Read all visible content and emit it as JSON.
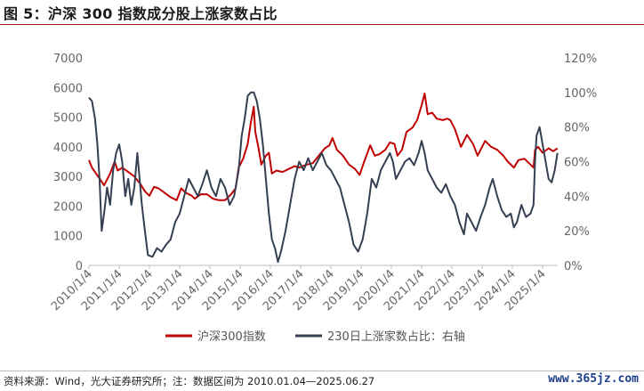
{
  "title": "图 5：沪深 300 指数成分股上涨家数占比",
  "source": "资料来源：Wind，光大证券研究所；注：数据区间为 2010.01.04—2025.06.27",
  "watermark": "www.365jz.com",
  "chart_data": {
    "type": "line",
    "x_ticks": [
      "2010/1/4",
      "2011/1/4",
      "2012/1/4",
      "2013/1/4",
      "2014/1/4",
      "2015/1/4",
      "2016/1/4",
      "2017/1/4",
      "2018/1/4",
      "2019/1/4",
      "2020/1/4",
      "2021/1/4",
      "2022/1/4",
      "2023/1/4",
      "2024/1/4",
      "2025/1/4"
    ],
    "x_range": [
      2010.0,
      2025.5
    ],
    "y_left": {
      "ticks": [
        "0",
        "1000",
        "2000",
        "3000",
        "4000",
        "5000",
        "6000",
        "7000"
      ],
      "range": [
        0,
        7000
      ]
    },
    "y_right": {
      "ticks": [
        "0%",
        "20%",
        "40%",
        "60%",
        "80%",
        "100%",
        "120%"
      ],
      "range": [
        0,
        1.2
      ]
    },
    "grid": false,
    "legend_position": "bottom",
    "series": [
      {
        "name": "沪深300指数",
        "axis": "left",
        "color": "#c00000",
        "points": [
          [
            2010.0,
            3550
          ],
          [
            2010.1,
            3300
          ],
          [
            2010.3,
            3000
          ],
          [
            2010.5,
            2700
          ],
          [
            2010.7,
            3100
          ],
          [
            2010.85,
            3500
          ],
          [
            2010.95,
            3200
          ],
          [
            2011.1,
            3300
          ],
          [
            2011.3,
            3150
          ],
          [
            2011.5,
            3000
          ],
          [
            2011.7,
            2750
          ],
          [
            2011.85,
            2500
          ],
          [
            2012.0,
            2350
          ],
          [
            2012.15,
            2650
          ],
          [
            2012.3,
            2600
          ],
          [
            2012.5,
            2450
          ],
          [
            2012.7,
            2300
          ],
          [
            2012.9,
            2200
          ],
          [
            2013.05,
            2600
          ],
          [
            2013.2,
            2450
          ],
          [
            2013.4,
            2350
          ],
          [
            2013.5,
            2250
          ],
          [
            2013.7,
            2400
          ],
          [
            2013.9,
            2400
          ],
          [
            2014.1,
            2250
          ],
          [
            2014.3,
            2200
          ],
          [
            2014.5,
            2200
          ],
          [
            2014.7,
            2400
          ],
          [
            2014.85,
            2600
          ],
          [
            2014.95,
            3300
          ],
          [
            2015.1,
            3600
          ],
          [
            2015.25,
            4100
          ],
          [
            2015.35,
            4800
          ],
          [
            2015.45,
            5350
          ],
          [
            2015.5,
            4500
          ],
          [
            2015.6,
            4000
          ],
          [
            2015.7,
            3400
          ],
          [
            2015.85,
            3700
          ],
          [
            2015.95,
            3800
          ],
          [
            2016.05,
            3100
          ],
          [
            2016.2,
            3200
          ],
          [
            2016.4,
            3150
          ],
          [
            2016.6,
            3250
          ],
          [
            2016.8,
            3350
          ],
          [
            2016.95,
            3300
          ],
          [
            2017.2,
            3400
          ],
          [
            2017.4,
            3450
          ],
          [
            2017.6,
            3700
          ],
          [
            2017.8,
            3950
          ],
          [
            2017.95,
            4050
          ],
          [
            2018.05,
            4300
          ],
          [
            2018.2,
            3900
          ],
          [
            2018.4,
            3700
          ],
          [
            2018.6,
            3400
          ],
          [
            2018.8,
            3250
          ],
          [
            2018.95,
            3050
          ],
          [
            2019.1,
            3500
          ],
          [
            2019.3,
            4050
          ],
          [
            2019.45,
            3700
          ],
          [
            2019.6,
            3750
          ],
          [
            2019.8,
            3900
          ],
          [
            2019.95,
            4150
          ],
          [
            2020.1,
            4100
          ],
          [
            2020.2,
            3700
          ],
          [
            2020.35,
            3900
          ],
          [
            2020.5,
            4500
          ],
          [
            2020.7,
            4650
          ],
          [
            2020.85,
            4900
          ],
          [
            2021.0,
            5400
          ],
          [
            2021.1,
            5800
          ],
          [
            2021.2,
            5100
          ],
          [
            2021.35,
            5150
          ],
          [
            2021.5,
            4950
          ],
          [
            2021.7,
            4900
          ],
          [
            2021.85,
            4950
          ],
          [
            2021.95,
            4900
          ],
          [
            2022.1,
            4600
          ],
          [
            2022.3,
            4000
          ],
          [
            2022.5,
            4400
          ],
          [
            2022.7,
            4100
          ],
          [
            2022.85,
            3700
          ],
          [
            2022.95,
            3900
          ],
          [
            2023.1,
            4200
          ],
          [
            2023.3,
            4000
          ],
          [
            2023.5,
            3900
          ],
          [
            2023.7,
            3700
          ],
          [
            2023.85,
            3500
          ],
          [
            2024.05,
            3300
          ],
          [
            2024.2,
            3550
          ],
          [
            2024.4,
            3600
          ],
          [
            2024.6,
            3400
          ],
          [
            2024.7,
            3300
          ],
          [
            2024.75,
            3900
          ],
          [
            2024.85,
            4000
          ],
          [
            2025.0,
            3800
          ],
          [
            2025.2,
            3950
          ],
          [
            2025.35,
            3850
          ],
          [
            2025.49,
            3950
          ]
        ]
      },
      {
        "name": "230日上涨家数占比：右轴",
        "axis": "right",
        "color": "#343f52",
        "points": [
          [
            2010.0,
            0.97
          ],
          [
            2010.1,
            0.95
          ],
          [
            2010.2,
            0.85
          ],
          [
            2010.28,
            0.7
          ],
          [
            2010.35,
            0.5
          ],
          [
            2010.42,
            0.2
          ],
          [
            2010.5,
            0.3
          ],
          [
            2010.6,
            0.45
          ],
          [
            2010.7,
            0.35
          ],
          [
            2010.8,
            0.55
          ],
          [
            2010.9,
            0.65
          ],
          [
            2011.0,
            0.7
          ],
          [
            2011.1,
            0.6
          ],
          [
            2011.2,
            0.4
          ],
          [
            2011.3,
            0.5
          ],
          [
            2011.4,
            0.35
          ],
          [
            2011.5,
            0.45
          ],
          [
            2011.6,
            0.65
          ],
          [
            2011.65,
            0.55
          ],
          [
            2011.75,
            0.35
          ],
          [
            2011.85,
            0.2
          ],
          [
            2011.95,
            0.06
          ],
          [
            2012.1,
            0.05
          ],
          [
            2012.25,
            0.1
          ],
          [
            2012.4,
            0.08
          ],
          [
            2012.55,
            0.12
          ],
          [
            2012.7,
            0.15
          ],
          [
            2012.85,
            0.25
          ],
          [
            2013.0,
            0.3
          ],
          [
            2013.15,
            0.4
          ],
          [
            2013.3,
            0.5
          ],
          [
            2013.45,
            0.45
          ],
          [
            2013.6,
            0.4
          ],
          [
            2013.75,
            0.47
          ],
          [
            2013.9,
            0.55
          ],
          [
            2014.05,
            0.45
          ],
          [
            2014.2,
            0.4
          ],
          [
            2014.35,
            0.5
          ],
          [
            2014.5,
            0.45
          ],
          [
            2014.65,
            0.35
          ],
          [
            2014.8,
            0.4
          ],
          [
            2014.95,
            0.55
          ],
          [
            2015.05,
            0.75
          ],
          [
            2015.15,
            0.85
          ],
          [
            2015.25,
            0.98
          ],
          [
            2015.35,
            1.0
          ],
          [
            2015.45,
            1.0
          ],
          [
            2015.55,
            0.95
          ],
          [
            2015.65,
            0.85
          ],
          [
            2015.75,
            0.7
          ],
          [
            2015.85,
            0.5
          ],
          [
            2015.95,
            0.3
          ],
          [
            2016.05,
            0.15
          ],
          [
            2016.15,
            0.1
          ],
          [
            2016.25,
            0.02
          ],
          [
            2016.35,
            0.08
          ],
          [
            2016.5,
            0.2
          ],
          [
            2016.65,
            0.35
          ],
          [
            2016.8,
            0.5
          ],
          [
            2016.95,
            0.6
          ],
          [
            2017.1,
            0.55
          ],
          [
            2017.25,
            0.62
          ],
          [
            2017.4,
            0.55
          ],
          [
            2017.55,
            0.6
          ],
          [
            2017.7,
            0.65
          ],
          [
            2017.85,
            0.58
          ],
          [
            2018.0,
            0.55
          ],
          [
            2018.15,
            0.5
          ],
          [
            2018.3,
            0.45
          ],
          [
            2018.45,
            0.35
          ],
          [
            2018.6,
            0.25
          ],
          [
            2018.75,
            0.12
          ],
          [
            2018.9,
            0.08
          ],
          [
            2019.05,
            0.15
          ],
          [
            2019.2,
            0.3
          ],
          [
            2019.35,
            0.5
          ],
          [
            2019.5,
            0.45
          ],
          [
            2019.65,
            0.55
          ],
          [
            2019.8,
            0.6
          ],
          [
            2019.95,
            0.65
          ],
          [
            2020.05,
            0.6
          ],
          [
            2020.15,
            0.5
          ],
          [
            2020.3,
            0.55
          ],
          [
            2020.45,
            0.6
          ],
          [
            2020.6,
            0.62
          ],
          [
            2020.75,
            0.58
          ],
          [
            2020.9,
            0.65
          ],
          [
            2021.0,
            0.72
          ],
          [
            2021.1,
            0.65
          ],
          [
            2021.2,
            0.55
          ],
          [
            2021.35,
            0.5
          ],
          [
            2021.5,
            0.45
          ],
          [
            2021.65,
            0.42
          ],
          [
            2021.8,
            0.47
          ],
          [
            2021.95,
            0.4
          ],
          [
            2022.1,
            0.35
          ],
          [
            2022.25,
            0.25
          ],
          [
            2022.4,
            0.18
          ],
          [
            2022.5,
            0.3
          ],
          [
            2022.65,
            0.25
          ],
          [
            2022.8,
            0.2
          ],
          [
            2022.95,
            0.28
          ],
          [
            2023.1,
            0.35
          ],
          [
            2023.25,
            0.45
          ],
          [
            2023.35,
            0.5
          ],
          [
            2023.5,
            0.4
          ],
          [
            2023.65,
            0.32
          ],
          [
            2023.8,
            0.28
          ],
          [
            2023.95,
            0.3
          ],
          [
            2024.05,
            0.22
          ],
          [
            2024.15,
            0.25
          ],
          [
            2024.3,
            0.35
          ],
          [
            2024.45,
            0.28
          ],
          [
            2024.6,
            0.3
          ],
          [
            2024.7,
            0.35
          ],
          [
            2024.75,
            0.6
          ],
          [
            2024.8,
            0.75
          ],
          [
            2024.9,
            0.8
          ],
          [
            2025.0,
            0.7
          ],
          [
            2025.1,
            0.6
          ],
          [
            2025.2,
            0.5
          ],
          [
            2025.3,
            0.48
          ],
          [
            2025.4,
            0.55
          ],
          [
            2025.49,
            0.65
          ]
        ]
      }
    ]
  }
}
